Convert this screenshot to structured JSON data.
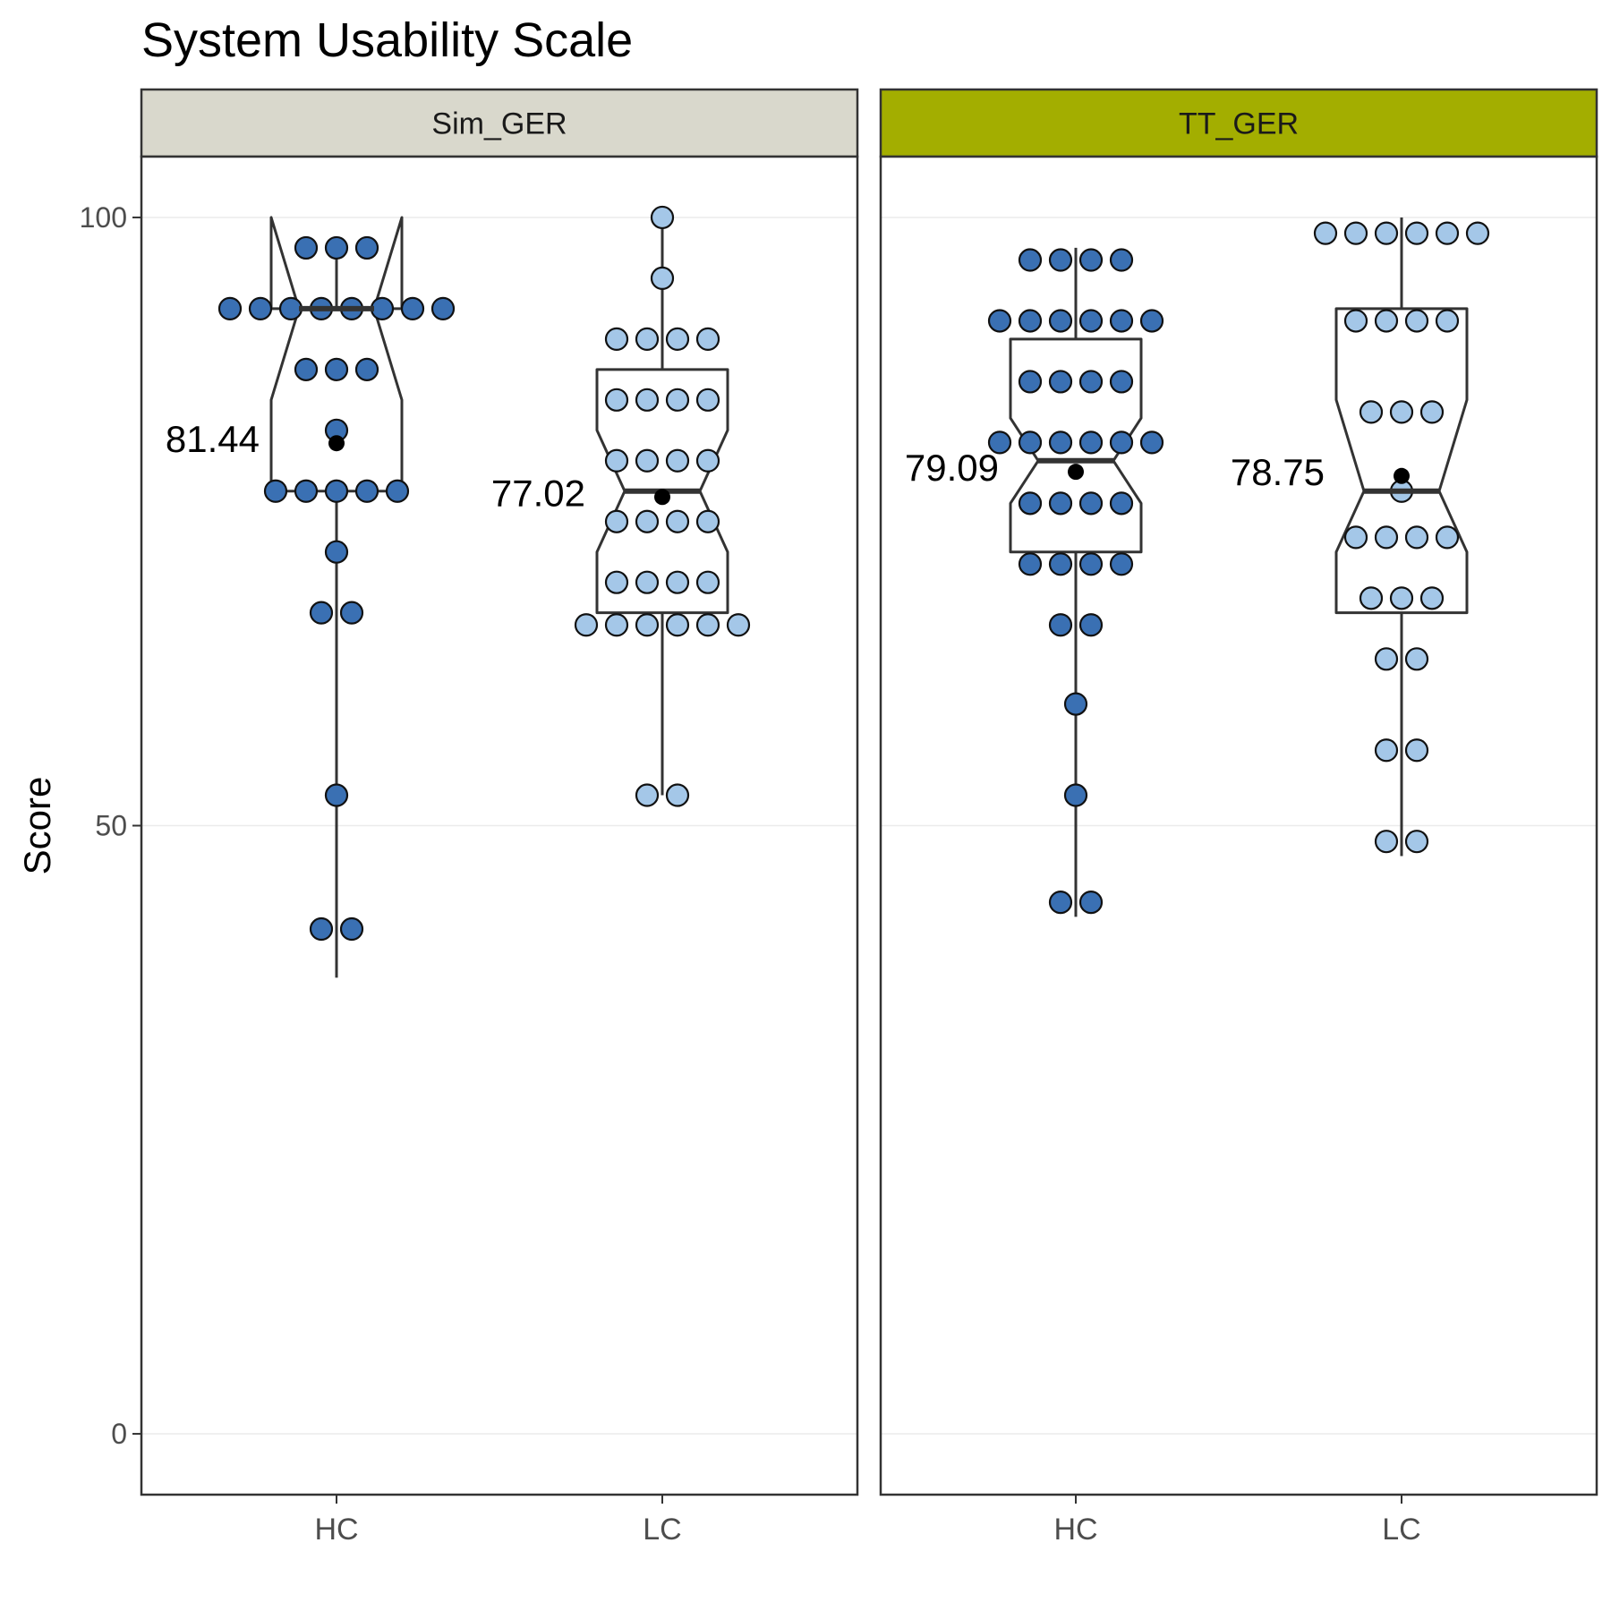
{
  "chart_data": {
    "type": "boxplot",
    "title": "System Usability Scale",
    "xlabel": "",
    "ylabel": "Score",
    "ylim": [
      -5,
      105
    ],
    "yticks": [
      0,
      50,
      100
    ],
    "grid": true,
    "categories": [
      "HC",
      "LC"
    ],
    "colors": {
      "HC": "#3a70b3",
      "LC": "#a4c7e8",
      "strip_sim": "#d9d8cc",
      "strip_tt": "#a3ae00"
    },
    "facets": [
      {
        "name": "Sim_GER",
        "groups": [
          {
            "category": "HC",
            "mean": 81.44,
            "mean_label": "81.44",
            "box": {
              "lower": 77.5,
              "median": 92.5,
              "upper": 92.5,
              "whisker_low": 37.5,
              "whisker_high": 97.5,
              "notch_low": 85.0,
              "notch_high": 100.0
            },
            "dot_rows": [
              {
                "value": 97.5,
                "count": 3
              },
              {
                "value": 92.5,
                "count": 8
              },
              {
                "value": 87.5,
                "count": 3
              },
              {
                "value": 82.5,
                "count": 1
              },
              {
                "value": 77.5,
                "count": 5
              },
              {
                "value": 72.5,
                "count": 1
              },
              {
                "value": 67.5,
                "count": 2
              },
              {
                "value": 52.5,
                "count": 1
              },
              {
                "value": 41.5,
                "count": 2
              }
            ]
          },
          {
            "category": "LC",
            "mean": 77.02,
            "mean_label": "77.02",
            "box": {
              "lower": 67.5,
              "median": 77.5,
              "upper": 87.5,
              "whisker_low": 52.5,
              "whisker_high": 100.0,
              "notch_low": 72.5,
              "notch_high": 82.5
            },
            "dot_rows": [
              {
                "value": 100.0,
                "count": 1
              },
              {
                "value": 95.0,
                "count": 1
              },
              {
                "value": 90.0,
                "count": 4
              },
              {
                "value": 85.0,
                "count": 4
              },
              {
                "value": 80.0,
                "count": 4
              },
              {
                "value": 75.0,
                "count": 4
              },
              {
                "value": 70.0,
                "count": 4
              },
              {
                "value": 66.5,
                "count": 6
              },
              {
                "value": 52.5,
                "count": 2
              }
            ]
          }
        ]
      },
      {
        "name": "TT_GER",
        "groups": [
          {
            "category": "HC",
            "mean": 79.09,
            "mean_label": "79.09",
            "box": {
              "lower": 72.5,
              "median": 80.0,
              "upper": 90.0,
              "whisker_low": 42.5,
              "whisker_high": 97.5,
              "notch_low": 76.5,
              "notch_high": 83.5
            },
            "dot_rows": [
              {
                "value": 96.5,
                "count": 4
              },
              {
                "value": 91.5,
                "count": 6
              },
              {
                "value": 86.5,
                "count": 4
              },
              {
                "value": 81.5,
                "count": 6
              },
              {
                "value": 76.5,
                "count": 4
              },
              {
                "value": 71.5,
                "count": 4
              },
              {
                "value": 66.5,
                "count": 2
              },
              {
                "value": 60.0,
                "count": 1
              },
              {
                "value": 52.5,
                "count": 1
              },
              {
                "value": 43.7,
                "count": 2
              }
            ]
          },
          {
            "category": "LC",
            "mean": 78.75,
            "mean_label": "78.75",
            "box": {
              "lower": 67.5,
              "median": 77.5,
              "upper": 92.5,
              "whisker_low": 47.5,
              "whisker_high": 100.0,
              "notch_low": 72.5,
              "notch_high": 85.0
            },
            "dot_rows": [
              {
                "value": 98.7,
                "count": 6
              },
              {
                "value": 91.5,
                "count": 4
              },
              {
                "value": 84.0,
                "count": 3
              },
              {
                "value": 77.5,
                "count": 1
              },
              {
                "value": 73.7,
                "count": 4
              },
              {
                "value": 68.7,
                "count": 3
              },
              {
                "value": 63.7,
                "count": 2
              },
              {
                "value": 56.2,
                "count": 2
              },
              {
                "value": 48.7,
                "count": 2
              }
            ]
          }
        ]
      }
    ]
  }
}
